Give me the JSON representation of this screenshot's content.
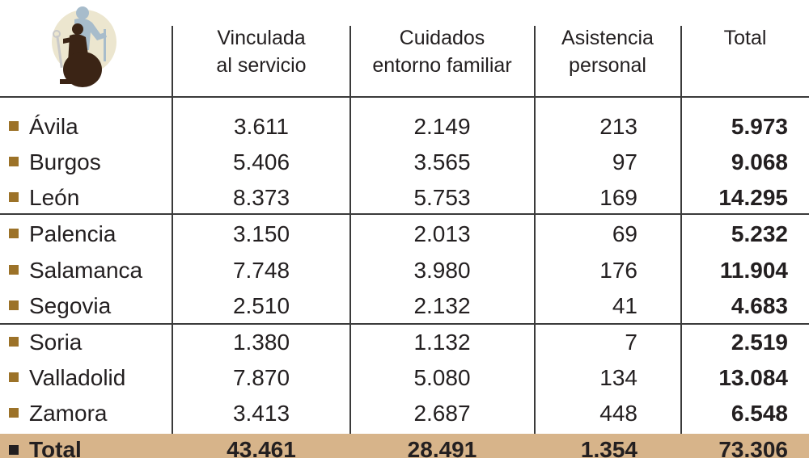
{
  "table": {
    "headers": [
      [
        "Vinculada",
        "al servicio"
      ],
      [
        "Cuidados",
        "entorno familiar"
      ],
      [
        "Asistencia",
        "personal"
      ],
      [
        "Total"
      ]
    ],
    "rows": [
      {
        "province": "Ávila",
        "vinculada": "3.611",
        "cuidados": "2.149",
        "asistencia": "213",
        "total": "5.973"
      },
      {
        "province": "Burgos",
        "vinculada": "5.406",
        "cuidados": "3.565",
        "asistencia": "97",
        "total": "9.068"
      },
      {
        "province": "León",
        "vinculada": "8.373",
        "cuidados": "5.753",
        "asistencia": "169",
        "total": "14.295"
      },
      {
        "province": "Palencia",
        "vinculada": "3.150",
        "cuidados": "2.013",
        "asistencia": "69",
        "total": "5.232"
      },
      {
        "province": "Salamanca",
        "vinculada": "7.748",
        "cuidados": "3.980",
        "asistencia": "176",
        "total": "11.904"
      },
      {
        "province": "Segovia",
        "vinculada": "2.510",
        "cuidados": "2.132",
        "asistencia": "41",
        "total": "4.683"
      },
      {
        "province": "Soria",
        "vinculada": "1.380",
        "cuidados": "1.132",
        "asistencia": "7",
        "total": "2.519"
      },
      {
        "province": "Valladolid",
        "vinculada": "7.870",
        "cuidados": "5.080",
        "asistencia": "134",
        "total": "13.084"
      },
      {
        "province": "Zamora",
        "vinculada": "3.413",
        "cuidados": "2.687",
        "asistencia": "448",
        "total": "6.548"
      }
    ],
    "total_row": {
      "province": "Total",
      "vinculada": "43.461",
      "cuidados": "28.491",
      "asistencia": "1.354",
      "total": "73.306"
    }
  },
  "chart_data": {
    "type": "table",
    "columns": [
      "Vinculada al servicio",
      "Cuidados entorno familiar",
      "Asistencia personal",
      "Total"
    ],
    "categories": [
      "Ávila",
      "Burgos",
      "León",
      "Palencia",
      "Salamanca",
      "Segovia",
      "Soria",
      "Valladolid",
      "Zamora"
    ],
    "series": [
      {
        "name": "Vinculada al servicio",
        "values": [
          3611,
          5406,
          8373,
          3150,
          7748,
          2510,
          1380,
          7870,
          3413
        ]
      },
      {
        "name": "Cuidados entorno familiar",
        "values": [
          2149,
          3565,
          5753,
          2013,
          3980,
          2132,
          1132,
          5080,
          2687
        ]
      },
      {
        "name": "Asistencia personal",
        "values": [
          213,
          97,
          169,
          69,
          176,
          41,
          7,
          134,
          448
        ]
      },
      {
        "name": "Total",
        "values": [
          5973,
          9068,
          14295,
          5232,
          11904,
          4683,
          2519,
          13084,
          6548
        ]
      }
    ],
    "totals": {
      "Vinculada al servicio": 43461,
      "Cuidados entorno familiar": 28491,
      "Asistencia personal": 1354,
      "Total": 73306
    }
  },
  "icons": {
    "logo": "person-with-cane-wheelchair-icon"
  },
  "colors": {
    "bullet": "#9c7228",
    "total_band": "#d7b48a",
    "logo_circle": "#e8e0c4",
    "logo_figure": "#3b2415",
    "logo_shadow": "#9fb4c4"
  }
}
